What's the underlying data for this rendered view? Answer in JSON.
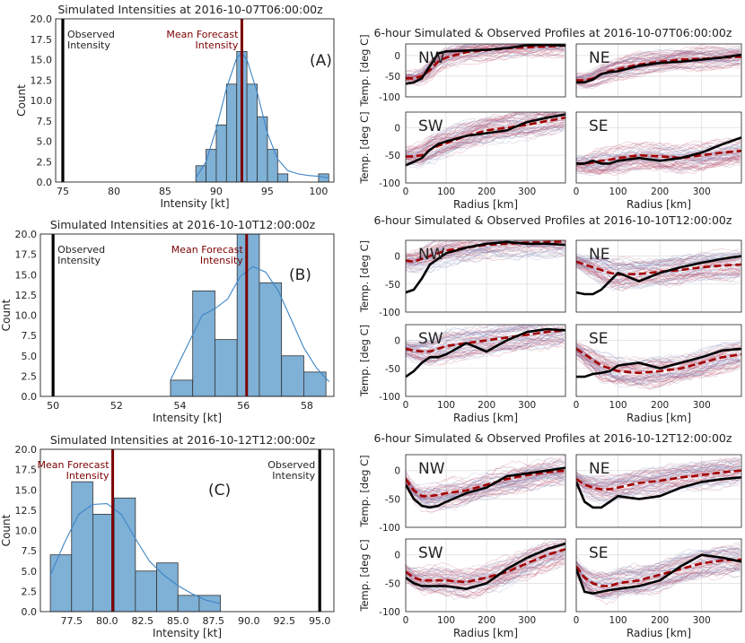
{
  "colors": {
    "bar_fill": "#7fb0d6",
    "bar_edge": "#333333",
    "kde": "#3d85c6",
    "mean": "#7b0000",
    "observed": "#000000",
    "ens_red": "#c0506a",
    "ens_blue": "#7a86b8",
    "mean_profile": "#a40000",
    "obs_profile": "#000000",
    "grid": "#dcdcdc"
  },
  "chart_data": [
    {
      "type": "bar",
      "panel_label": "(A)",
      "title": "Simulated Intensities at 2016-10-07T06:00:00z",
      "xlabel": "Intensity [kt]",
      "ylabel": "Count",
      "xlim": [
        74.3,
        101.5
      ],
      "ylim": [
        0,
        20
      ],
      "xticks": [
        "75",
        "80",
        "85",
        "90",
        "95",
        "100"
      ],
      "xtick_values": [
        75,
        80,
        85,
        90,
        95,
        100
      ],
      "yticks": [
        "0.0",
        "2.5",
        "5.0",
        "7.5",
        "10.0",
        "12.5",
        "15.0",
        "17.5",
        "20.0"
      ],
      "bins": [
        {
          "x0": 88,
          "x1": 89,
          "count": 2
        },
        {
          "x0": 89,
          "x1": 90,
          "count": 4
        },
        {
          "x0": 90,
          "x1": 91,
          "count": 7
        },
        {
          "x0": 91,
          "x1": 92,
          "count": 12
        },
        {
          "x0": 92,
          "x1": 93,
          "count": 16
        },
        {
          "x0": 93,
          "x1": 94,
          "count": 12
        },
        {
          "x0": 94,
          "x1": 95,
          "count": 8
        },
        {
          "x0": 95,
          "x1": 96,
          "count": 4
        },
        {
          "x0": 96,
          "x1": 97,
          "count": 1
        },
        {
          "x0": 97,
          "x1": 98,
          "count": 0
        },
        {
          "x0": 98,
          "x1": 99,
          "count": 0
        },
        {
          "x0": 99,
          "x1": 100,
          "count": 0
        },
        {
          "x0": 100,
          "x1": 101,
          "count": 1
        }
      ],
      "kde": {
        "x": [
          88,
          89,
          90,
          91,
          92,
          92.5,
          93,
          94,
          95,
          96,
          97,
          98,
          99,
          100,
          101
        ],
        "y": [
          0.5,
          2.5,
          6.5,
          11.5,
          15.2,
          15.8,
          15,
          11,
          6,
          2.8,
          1.4,
          1.0,
          0.8,
          0.7,
          0.5
        ]
      },
      "mean_forecast": 92.5,
      "observed": 75,
      "mean_label": "Mean Forecast\nIntensity",
      "observed_label": "Observed\nIntensity",
      "mean_label_pos": "left-of-line",
      "observed_label_pos": "right-of-line"
    },
    {
      "type": "bar",
      "panel_label": "(B)",
      "title": "Simulated Intensities at 2016-10-10T12:00:00z",
      "xlabel": "Intensity [kt]",
      "ylabel": "Count",
      "xlim": [
        49.6,
        58.85
      ],
      "ylim": [
        0,
        20
      ],
      "xticks": [
        "50",
        "52",
        "54",
        "56",
        "58"
      ],
      "xtick_values": [
        50,
        52,
        54,
        56,
        58
      ],
      "yticks": [
        "0.0",
        "2.5",
        "5.0",
        "7.5",
        "10.0",
        "12.5",
        "15.0",
        "17.5",
        "20.0"
      ],
      "bins": [
        {
          "x0": 53.7,
          "x1": 54.4,
          "count": 2
        },
        {
          "x0": 54.4,
          "x1": 55.1,
          "count": 13
        },
        {
          "x0": 55.1,
          "x1": 55.8,
          "count": 7
        },
        {
          "x0": 55.8,
          "x1": 56.5,
          "count": 20
        },
        {
          "x0": 56.5,
          "x1": 57.2,
          "count": 14
        },
        {
          "x0": 57.2,
          "x1": 57.9,
          "count": 5
        },
        {
          "x0": 57.9,
          "x1": 58.6,
          "count": 3
        }
      ],
      "kde": {
        "x": [
          53.7,
          54.2,
          54.7,
          55.1,
          55.5,
          55.9,
          56.3,
          56.7,
          57.1,
          57.5,
          57.9,
          58.3,
          58.7
        ],
        "y": [
          2,
          6,
          10,
          10.8,
          12,
          14.8,
          16,
          15.3,
          13,
          9.5,
          6,
          3.5,
          1.8
        ]
      },
      "mean_forecast": 56.1,
      "observed": 50,
      "mean_label": "Mean Forecast\nIntensity",
      "observed_label": "Observed\nIntensity",
      "mean_label_pos": "left-of-line",
      "observed_label_pos": "right-of-line"
    },
    {
      "type": "bar",
      "panel_label": "(C)",
      "title": "Simulated Intensities at 2016-10-12T12:00:00z",
      "xlabel": "Intensity [kt]",
      "ylabel": "Count",
      "xlim": [
        75.3,
        96.0
      ],
      "ylim": [
        0,
        20
      ],
      "xticks": [
        "77.5",
        "80.0",
        "82.5",
        "85.0",
        "87.5",
        "90.0",
        "92.5",
        "95.0"
      ],
      "xtick_values": [
        77.5,
        80,
        82.5,
        85,
        87.5,
        90,
        92.5,
        95
      ],
      "yticks": [
        "0.0",
        "2.5",
        "5.0",
        "7.5",
        "10.0",
        "12.5",
        "15.0",
        "17.5",
        "20.0"
      ],
      "bins": [
        {
          "x0": 76.0,
          "x1": 77.5,
          "count": 7
        },
        {
          "x0": 77.5,
          "x1": 79.0,
          "count": 16
        },
        {
          "x0": 79.0,
          "x1": 80.5,
          "count": 12
        },
        {
          "x0": 80.5,
          "x1": 82.0,
          "count": 14
        },
        {
          "x0": 82.0,
          "x1": 83.5,
          "count": 5
        },
        {
          "x0": 83.5,
          "x1": 85.0,
          "count": 6
        },
        {
          "x0": 85.0,
          "x1": 86.5,
          "count": 2
        },
        {
          "x0": 86.5,
          "x1": 88.0,
          "count": 2
        }
      ],
      "kde": {
        "x": [
          76.0,
          77.0,
          78.0,
          79.0,
          80.0,
          81.0,
          82.0,
          83.0,
          84.0,
          85.0,
          86.0,
          87.0,
          88.0
        ],
        "y": [
          4.5,
          8.5,
          12,
          13.2,
          13.3,
          12,
          9,
          6.2,
          4.5,
          3.2,
          2.2,
          1.4,
          1.0
        ]
      },
      "mean_forecast": 80.4,
      "observed": 95,
      "mean_label": "Mean Forecast\nIntensity",
      "observed_label": "Observed\nIntensity",
      "mean_label_pos": "left-of-line",
      "observed_label_pos": "left-of-line"
    },
    {
      "type": "line",
      "title": "6-hour Simulated & Observed Profiles at 2016-10-07T06:00:00z",
      "xlabel": "Radius [km]",
      "ylabel": "Temp. [deg C]",
      "xlim": [
        0,
        395
      ],
      "ylim": [
        -100,
        28
      ],
      "xticks": [
        "0",
        "100",
        "200",
        "300"
      ],
      "xtick_values": [
        0,
        100,
        200,
        300
      ],
      "yticks": [
        "-100",
        "-50",
        "0"
      ],
      "ytick_values": [
        -100,
        -50,
        0
      ],
      "ensemble_members": 60,
      "quadrants": [
        {
          "name": "NW",
          "x": [
            0,
            20,
            40,
            60,
            80,
            100,
            150,
            200,
            250,
            300,
            350,
            395
          ],
          "mean": [
            -55,
            -55,
            -50,
            -35,
            -15,
            -5,
            8,
            13,
            17,
            20,
            22,
            24
          ],
          "observed": [
            -68,
            -65,
            -55,
            -25,
            5,
            10,
            12,
            14,
            18,
            25,
            26,
            24
          ]
        },
        {
          "name": "NE",
          "x": [
            0,
            20,
            40,
            60,
            80,
            100,
            150,
            200,
            250,
            300,
            350,
            395
          ],
          "mean": [
            -60,
            -60,
            -55,
            -45,
            -38,
            -33,
            -22,
            -15,
            -10,
            -8,
            -5,
            -3
          ],
          "observed": [
            -65,
            -65,
            -58,
            -45,
            -40,
            -38,
            -25,
            -18,
            -15,
            -10,
            -5,
            2
          ]
        },
        {
          "name": "SW",
          "x": [
            0,
            20,
            40,
            60,
            80,
            100,
            150,
            200,
            250,
            300,
            350,
            395
          ],
          "mean": [
            -52,
            -52,
            -50,
            -40,
            -33,
            -28,
            -15,
            -5,
            0,
            5,
            12,
            18
          ],
          "observed": [
            -68,
            -62,
            -55,
            -40,
            -30,
            -25,
            -15,
            -10,
            -5,
            10,
            18,
            24
          ]
        },
        {
          "name": "SE",
          "x": [
            0,
            20,
            40,
            60,
            80,
            100,
            150,
            200,
            250,
            300,
            350,
            395
          ],
          "mean": [
            -65,
            -65,
            -63,
            -60,
            -58,
            -55,
            -50,
            -52,
            -55,
            -50,
            -45,
            -42
          ],
          "observed": [
            -65,
            -65,
            -60,
            -65,
            -65,
            -60,
            -55,
            -60,
            -55,
            -45,
            -30,
            -18
          ]
        }
      ]
    },
    {
      "type": "line",
      "title": "6-hour Simulated & Observed Profiles at 2016-10-10T12:00:00z",
      "xlabel": "Radius [km]",
      "ylabel": "Temp. [deg C]",
      "xlim": [
        0,
        395
      ],
      "ylim": [
        -100,
        28
      ],
      "xticks": [
        "0",
        "100",
        "200",
        "300"
      ],
      "xtick_values": [
        0,
        100,
        200,
        300
      ],
      "yticks": [
        "-100",
        "-50",
        "0"
      ],
      "ytick_values": [
        -100,
        -50,
        0
      ],
      "ensemble_members": 60,
      "quadrants": [
        {
          "name": "NW",
          "x": [
            0,
            20,
            40,
            60,
            80,
            100,
            150,
            200,
            250,
            300,
            350,
            395
          ],
          "mean": [
            -8,
            -10,
            -5,
            0,
            5,
            10,
            15,
            20,
            22,
            24,
            25,
            26
          ],
          "observed": [
            -65,
            -60,
            -40,
            -15,
            -5,
            5,
            15,
            22,
            25,
            22,
            22,
            20
          ]
        },
        {
          "name": "NE",
          "x": [
            0,
            20,
            40,
            60,
            80,
            100,
            150,
            200,
            250,
            300,
            350,
            395
          ],
          "mean": [
            -10,
            -15,
            -20,
            -25,
            -30,
            -33,
            -32,
            -28,
            -25,
            -20,
            -17,
            -15
          ],
          "observed": [
            -65,
            -68,
            -68,
            -60,
            -45,
            -30,
            -45,
            -30,
            -20,
            -12,
            -5,
            0
          ]
        },
        {
          "name": "SW",
          "x": [
            0,
            20,
            40,
            60,
            80,
            100,
            150,
            200,
            250,
            300,
            350,
            395
          ],
          "mean": [
            -15,
            -18,
            -20,
            -20,
            -15,
            -10,
            -5,
            0,
            5,
            10,
            15,
            18
          ],
          "observed": [
            -65,
            -55,
            -40,
            -30,
            -30,
            -25,
            -5,
            -20,
            0,
            15,
            20,
            18
          ]
        },
        {
          "name": "SE",
          "x": [
            0,
            20,
            40,
            60,
            80,
            100,
            150,
            200,
            250,
            300,
            350,
            395
          ],
          "mean": [
            -15,
            -25,
            -35,
            -45,
            -50,
            -55,
            -58,
            -55,
            -50,
            -40,
            -30,
            -25
          ],
          "observed": [
            -65,
            -65,
            -60,
            -58,
            -55,
            -45,
            -40,
            -50,
            -40,
            -30,
            -18,
            -15
          ]
        }
      ]
    },
    {
      "type": "line",
      "title": "6-hour Simulated & Observed Profiles at 2016-10-12T12:00:00z",
      "xlabel": "Radius [km]",
      "ylabel": "Temp. [deg C]",
      "xlim": [
        0,
        395
      ],
      "ylim": [
        -100,
        28
      ],
      "xticks": [
        "0",
        "100",
        "200",
        "300"
      ],
      "xtick_values": [
        0,
        100,
        200,
        300
      ],
      "yticks": [
        "-100",
        "-50",
        "0"
      ],
      "ytick_values": [
        -100,
        -50,
        0
      ],
      "ensemble_members": 60,
      "quadrants": [
        {
          "name": "NW",
          "x": [
            0,
            20,
            40,
            60,
            80,
            100,
            150,
            200,
            250,
            300,
            350,
            395
          ],
          "mean": [
            -15,
            -35,
            -45,
            -45,
            -43,
            -40,
            -35,
            -25,
            -15,
            -8,
            -3,
            0
          ],
          "observed": [
            -25,
            -50,
            -62,
            -65,
            -62,
            -55,
            -40,
            -30,
            -10,
            -5,
            0,
            5
          ]
        },
        {
          "name": "NE",
          "x": [
            0,
            20,
            40,
            60,
            80,
            100,
            150,
            200,
            250,
            300,
            350,
            395
          ],
          "mean": [
            -15,
            -25,
            -30,
            -33,
            -33,
            -30,
            -22,
            -18,
            -12,
            -8,
            -3,
            0
          ],
          "observed": [
            -20,
            -55,
            -65,
            -65,
            -55,
            -45,
            -50,
            -45,
            -30,
            -20,
            -15,
            -12
          ]
        },
        {
          "name": "SW",
          "x": [
            0,
            20,
            40,
            60,
            80,
            100,
            150,
            200,
            250,
            300,
            350,
            395
          ],
          "mean": [
            -30,
            -40,
            -45,
            -45,
            -45,
            -45,
            -48,
            -40,
            -30,
            -15,
            0,
            10
          ],
          "observed": [
            -40,
            -50,
            -55,
            -55,
            -55,
            -55,
            -60,
            -50,
            -25,
            -5,
            10,
            20
          ]
        },
        {
          "name": "SE",
          "x": [
            0,
            20,
            40,
            60,
            80,
            100,
            150,
            200,
            250,
            300,
            350,
            395
          ],
          "mean": [
            -20,
            -40,
            -50,
            -55,
            -55,
            -50,
            -45,
            -35,
            -25,
            -15,
            -10,
            -8
          ],
          "observed": [
            -25,
            -65,
            -68,
            -65,
            -62,
            -60,
            -55,
            -45,
            -20,
            0,
            -5,
            -12
          ]
        }
      ]
    }
  ]
}
